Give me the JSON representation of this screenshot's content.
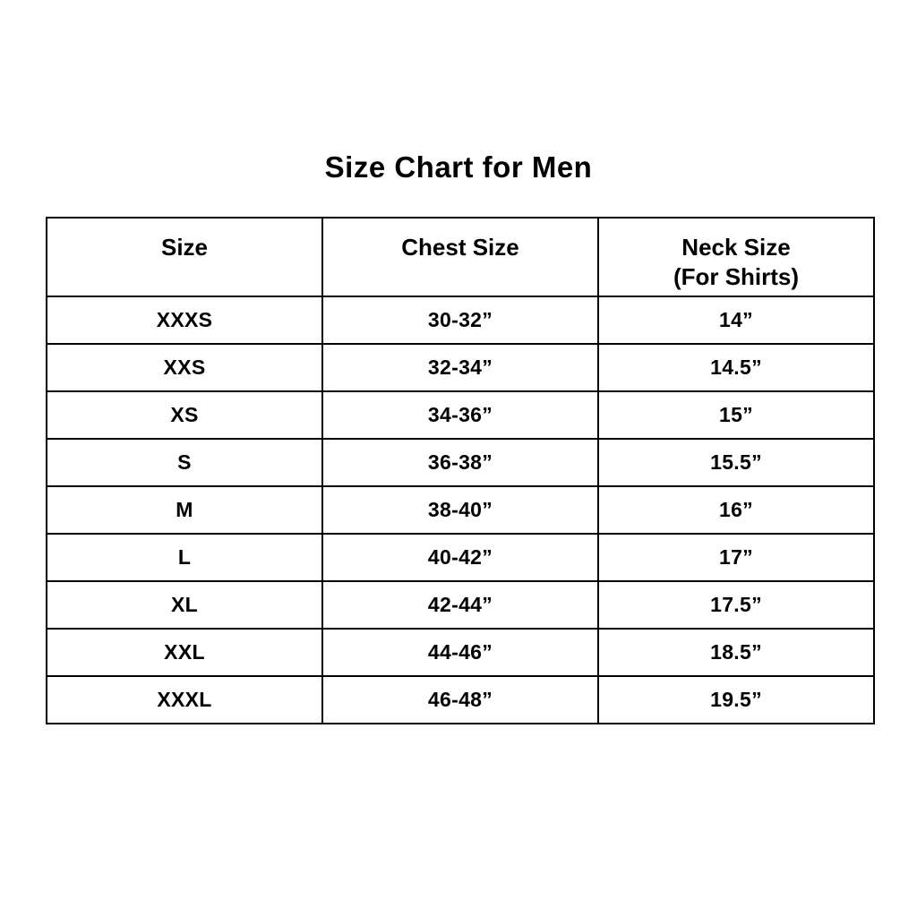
{
  "page": {
    "title": "Size Chart for Men",
    "background_color": "#ffffff",
    "border_color": "#000000",
    "text_color": "#000000"
  },
  "table": {
    "headers": [
      {
        "label": "Size",
        "sub": ""
      },
      {
        "label": "Chest Size",
        "sub": ""
      },
      {
        "label": "Neck Size",
        "sub": "(For Shirts)"
      }
    ],
    "rows": [
      {
        "size": "XXXS",
        "chest": "30-32”",
        "neck": "14”"
      },
      {
        "size": "XXS",
        "chest": "32-34”",
        "neck": "14.5”"
      },
      {
        "size": "XS",
        "chest": "34-36”",
        "neck": "15”"
      },
      {
        "size": "S",
        "chest": "36-38”",
        "neck": "15.5”"
      },
      {
        "size": "M",
        "chest": "38-40”",
        "neck": "16”"
      },
      {
        "size": "L",
        "chest": "40-42”",
        "neck": "17”"
      },
      {
        "size": "XL",
        "chest": "42-44”",
        "neck": "17.5”"
      },
      {
        "size": "XXL",
        "chest": "44-46”",
        "neck": "18.5”"
      },
      {
        "size": "XXXL",
        "chest": "46-48”",
        "neck": "19.5”"
      }
    ]
  },
  "chart_data": {
    "type": "table",
    "title": "Size Chart for Men",
    "columns": [
      "Size",
      "Chest Size",
      "Neck Size (For Shirts)"
    ],
    "rows": [
      [
        "XXXS",
        "30-32”",
        "14”"
      ],
      [
        "XXS",
        "32-34”",
        "14.5”"
      ],
      [
        "XS",
        "34-36”",
        "15”"
      ],
      [
        "S",
        "36-38”",
        "15.5”"
      ],
      [
        "M",
        "38-40”",
        "16”"
      ],
      [
        "L",
        "40-42”",
        "17”"
      ],
      [
        "XL",
        "42-44”",
        "17.5”"
      ],
      [
        "XXL",
        "44-46”",
        "18.5”"
      ],
      [
        "XXXL",
        "46-48”",
        "19.5”"
      ]
    ]
  }
}
